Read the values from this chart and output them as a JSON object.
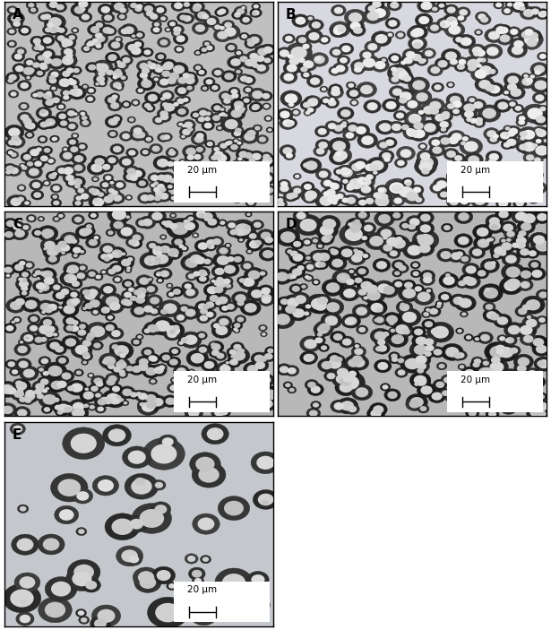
{
  "layout": {
    "figsize": [
      6.15,
      7.03
    ],
    "dpi": 100
  },
  "panels": [
    {
      "label": "A",
      "bg_color": "#c0c0c0",
      "particle_size_mean": 4.5,
      "particle_size_std": 1.2,
      "particle_size_min": 2.5,
      "particle_size_max": 8.0,
      "n_particles": 500,
      "seed": 42,
      "cluster_factor": 0.6,
      "inner_brightness": 0.82,
      "ring_darkness": 0.18
    },
    {
      "label": "B",
      "bg_color": "#d8d8e0",
      "particle_size_mean": 5.5,
      "particle_size_std": 1.5,
      "particle_size_min": 3.0,
      "particle_size_max": 10.0,
      "n_particles": 380,
      "seed": 123,
      "cluster_factor": 0.5,
      "inner_brightness": 0.88,
      "ring_darkness": 0.22
    },
    {
      "label": "C",
      "bg_color": "#b8b8b8",
      "particle_size_mean": 5.0,
      "particle_size_std": 1.8,
      "particle_size_min": 2.5,
      "particle_size_max": 11.0,
      "n_particles": 480,
      "seed": 7,
      "cluster_factor": 0.5,
      "inner_brightness": 0.8,
      "ring_darkness": 0.15
    },
    {
      "label": "D",
      "bg_color": "#b8b8b8",
      "particle_size_mean": 5.5,
      "particle_size_std": 2.0,
      "particle_size_min": 3.0,
      "particle_size_max": 12.0,
      "n_particles": 350,
      "seed": 99,
      "cluster_factor": 0.6,
      "inner_brightness": 0.8,
      "ring_darkness": 0.15
    },
    {
      "label": "E",
      "bg_color": "#c4c8cc",
      "particle_size_mean": 9.0,
      "particle_size_std": 4.0,
      "particle_size_min": 4.0,
      "particle_size_max": 22.0,
      "n_particles": 60,
      "seed": 55,
      "cluster_factor": 0.7,
      "inner_brightness": 0.82,
      "ring_darkness": 0.2
    }
  ],
  "scalebar_text": "20 μm",
  "label_fontsize": 11,
  "scalebar_fontsize": 7.5,
  "border_color": "#000000",
  "label_color": "#000000"
}
